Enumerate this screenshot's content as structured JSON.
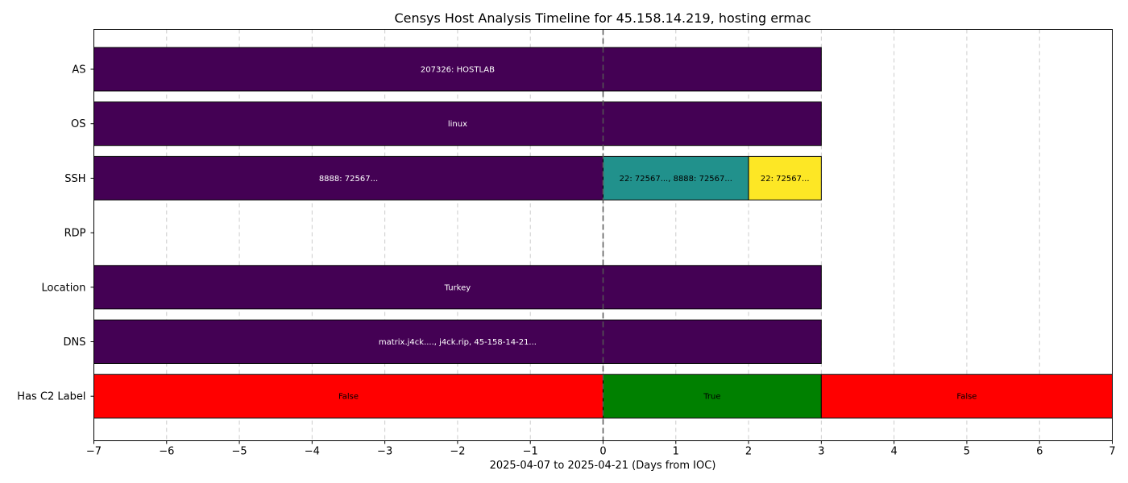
{
  "chart_data": {
    "type": "timeline",
    "title": "Censys Host Analysis Timeline for 45.158.14.219, hosting ermac",
    "xlabel": "2025-04-07 to 2025-04-21 (Days from IOC)",
    "ylabel": "",
    "xlim": [
      -7,
      7
    ],
    "x_ticks": [
      -7,
      -6,
      -5,
      -4,
      -3,
      -2,
      -1,
      0,
      1,
      2,
      3,
      4,
      5,
      6,
      7
    ],
    "grid": true,
    "ioc_marker_x": 0,
    "categories": [
      "AS",
      "OS",
      "SSH",
      "RDP",
      "Location",
      "DNS",
      "Has C2 Label"
    ],
    "segments": [
      {
        "row": "AS",
        "start": -7,
        "end": 3,
        "label": "207326: HOSTLAB",
        "color": "#440154",
        "text_color": "#ffffff"
      },
      {
        "row": "OS",
        "start": -7,
        "end": 3,
        "label": "linux",
        "color": "#440154",
        "text_color": "#ffffff"
      },
      {
        "row": "SSH",
        "start": -7,
        "end": 0,
        "label": "8888: 72567...",
        "color": "#440154",
        "text_color": "#ffffff"
      },
      {
        "row": "SSH",
        "start": 0,
        "end": 2,
        "label": "22: 72567..., 8888: 72567...",
        "color": "#21918c",
        "text_color": "#000000"
      },
      {
        "row": "SSH",
        "start": 2,
        "end": 3,
        "label": "22: 72567...",
        "color": "#fde725",
        "text_color": "#000000"
      },
      {
        "row": "Location",
        "start": -7,
        "end": 3,
        "label": "Turkey",
        "color": "#440154",
        "text_color": "#ffffff"
      },
      {
        "row": "DNS",
        "start": -7,
        "end": 3,
        "label": "matrix.j4ck...., j4ck.rip, 45-158-14-21...",
        "color": "#440154",
        "text_color": "#ffffff"
      },
      {
        "row": "Has C2 Label",
        "start": -7,
        "end": 0,
        "label": "False",
        "color": "#ff0000",
        "text_color": "#000000"
      },
      {
        "row": "Has C2 Label",
        "start": 0,
        "end": 3,
        "label": "True",
        "color": "#008000",
        "text_color": "#000000"
      },
      {
        "row": "Has C2 Label",
        "start": 3,
        "end": 7,
        "label": "False",
        "color": "#ff0000",
        "text_color": "#000000"
      }
    ]
  }
}
